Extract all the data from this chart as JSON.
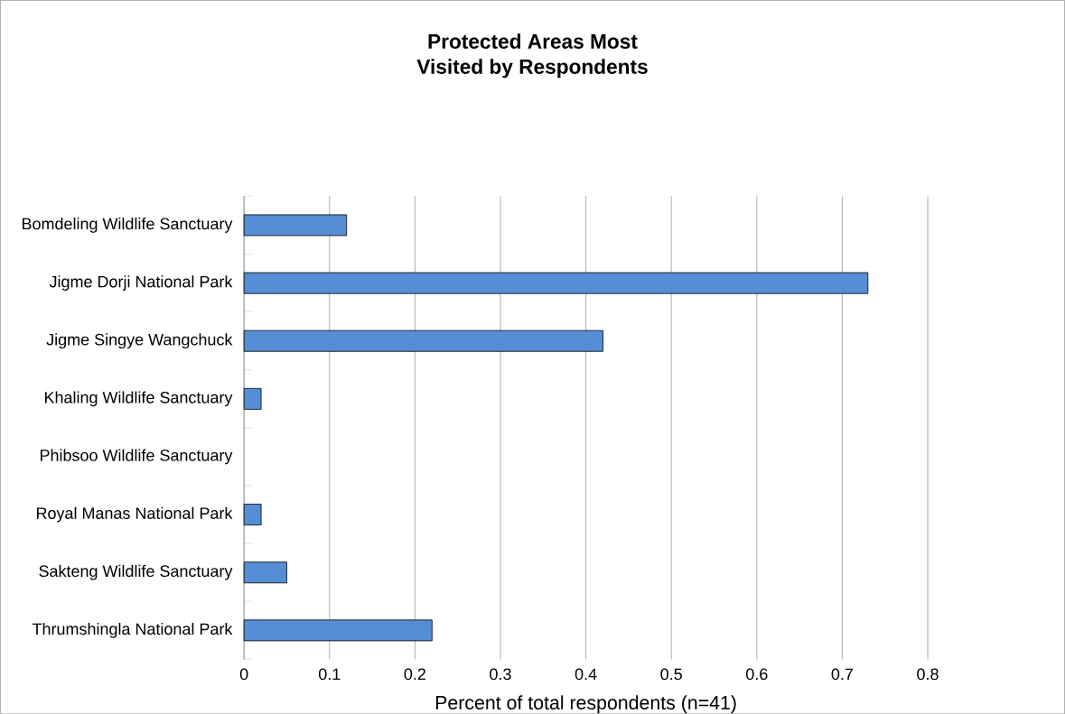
{
  "chart_data": {
    "type": "bar",
    "orientation": "horizontal",
    "title": "Protected Areas Most\nVisited by Respondents",
    "xlabel": "Percent of total respondents (n=41)",
    "categories": [
      "Bomdeling Wildlife Sanctuary",
      "Jigme Dorji National Park",
      "Jigme Singye Wangchuck",
      "Khaling Wildlife Sanctuary",
      "Phibsoo Wildlife Sanctuary",
      "Royal Manas National Park",
      "Sakteng Wildlife Sanctuary",
      "Thrumshingla National Park"
    ],
    "values": [
      0.12,
      0.73,
      0.42,
      0.02,
      0,
      0.02,
      0.05,
      0.22
    ],
    "color": "#558ed5",
    "xlim": [
      0,
      0.8
    ],
    "xticks": [
      0,
      0.1,
      0.2,
      0.3,
      0.4,
      0.5,
      0.6,
      0.7,
      0.8
    ],
    "grid": "x"
  }
}
